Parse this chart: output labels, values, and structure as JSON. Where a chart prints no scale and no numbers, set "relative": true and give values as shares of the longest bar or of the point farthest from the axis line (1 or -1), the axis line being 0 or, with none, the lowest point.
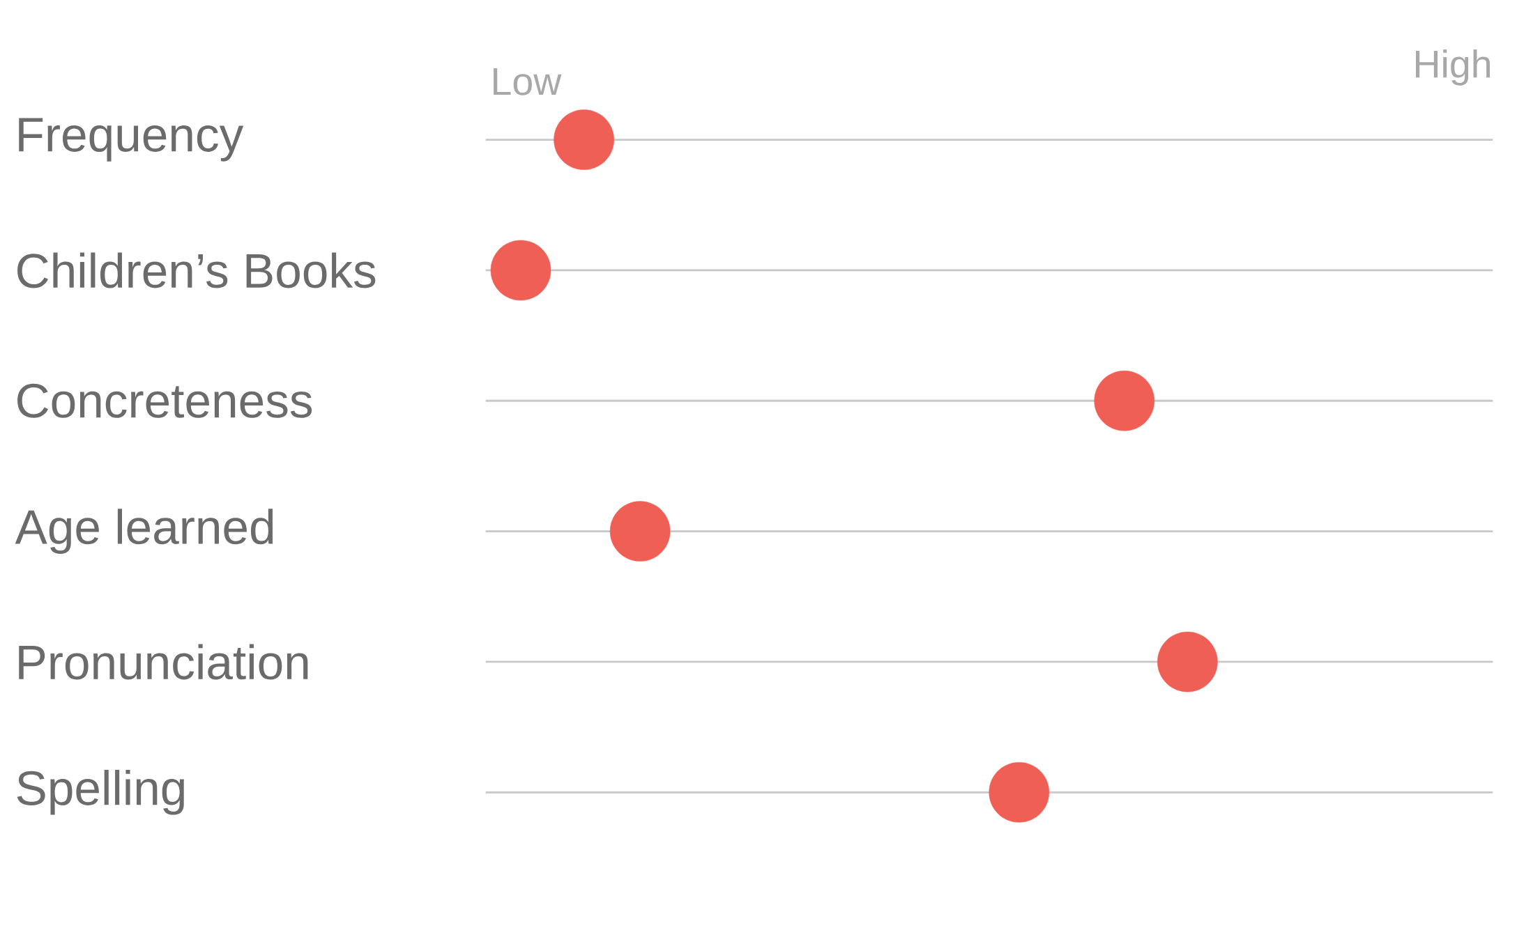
{
  "chart_data": {
    "type": "scatter",
    "orientation": "horizontal",
    "relative": true,
    "categories": [
      "Frequency",
      "Children’s Books",
      "Concreteness",
      "Age learned",
      "Pronunciation",
      "Spelling"
    ],
    "values": [
      0.14,
      0.05,
      0.91,
      0.22,
      1,
      0.76
    ],
    "color": "#ef5f55",
    "grid": "y",
    "annotations": [
      "Low",
      "High"
    ]
  }
}
